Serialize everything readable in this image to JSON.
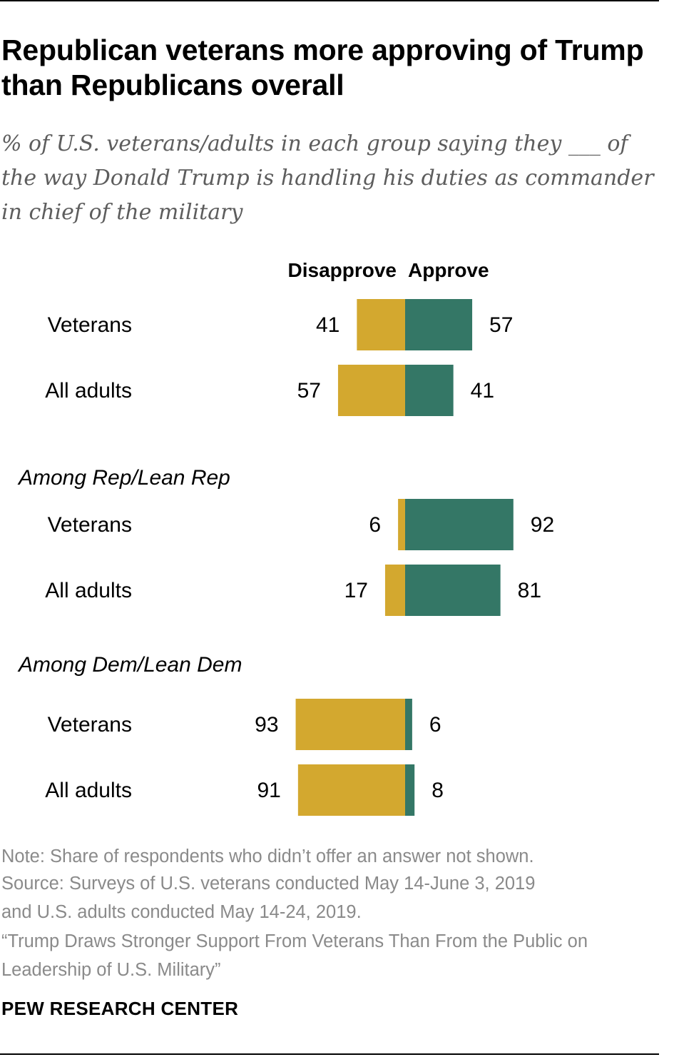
{
  "title": "Republican veterans more approving of Trump than Republicans overall",
  "subtitle": "% of U.S. veterans/adults in each group saying they ___ of the way Donald Trump is handling his duties as commander in chief of the military",
  "notes": {
    "note": "Note: Share of respondents who didn’t offer an answer not shown.",
    "source_line1": "Source: Surveys of U.S. veterans conducted May 14-June 3, 2019",
    "source_line2": "and U.S. adults conducted May 14-24, 2019.",
    "citation": "“Trump Draws Stronger Support From Veterans Than From the Public on Leadership of U.S. Military”"
  },
  "brand": "PEW RESEARCH CENTER",
  "colors": {
    "disapprove": "#D3A82F",
    "approve": "#347766"
  },
  "chart_data": {
    "type": "bar",
    "orientation": "horizontal-diverging",
    "series": [
      {
        "name": "Disapprove",
        "color": "#D3A82F"
      },
      {
        "name": "Approve",
        "color": "#347766"
      }
    ],
    "groups": [
      {
        "label": "",
        "rows": [
          {
            "label": "Veterans",
            "disapprove": 41,
            "approve": 57
          },
          {
            "label": "All adults",
            "disapprove": 57,
            "approve": 41
          }
        ]
      },
      {
        "label": "Among Rep/Lean Rep",
        "rows": [
          {
            "label": "Veterans",
            "disapprove": 6,
            "approve": 92
          },
          {
            "label": "All adults",
            "disapprove": 17,
            "approve": 81
          }
        ]
      },
      {
        "label": "Among Dem/Lean Dem",
        "rows": [
          {
            "label": "Veterans",
            "disapprove": 93,
            "approve": 6
          },
          {
            "label": "All adults",
            "disapprove": 91,
            "approve": 8
          }
        ]
      }
    ],
    "xlim": [
      0,
      100
    ]
  }
}
